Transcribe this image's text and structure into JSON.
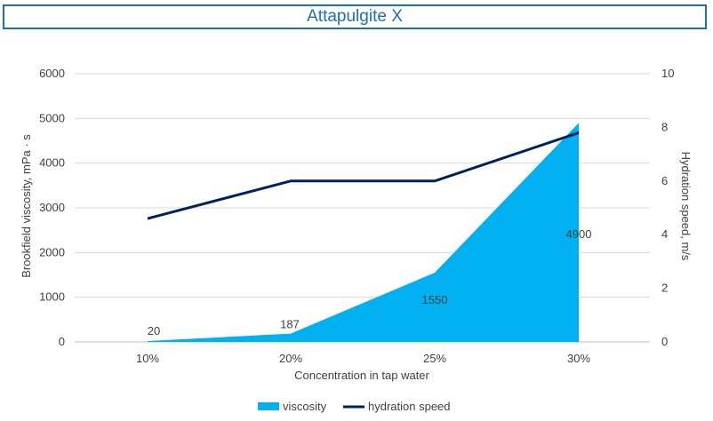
{
  "chart_data": {
    "type": "area+line",
    "title": "Attapulgite  X",
    "xlabel": "Concentration in tap water",
    "ylabel_left": "Brookfield viscosity, mPa · s",
    "ylabel_right": "Hydration  speed, m/s",
    "categories": [
      "10%",
      "20%",
      "25%",
      "30%"
    ],
    "ylim_left": [
      0,
      6000
    ],
    "yticks_left": [
      "0",
      "1000",
      "2000",
      "3000",
      "4000",
      "5000",
      "6000"
    ],
    "ylim_right": [
      0,
      10
    ],
    "yticks_right": [
      "0",
      "2",
      "4",
      "6",
      "8",
      "10"
    ],
    "grid": true,
    "legend_position": "bottom",
    "series": [
      {
        "name": "viscosity",
        "kind": "area",
        "axis": "left",
        "color": "#00b0f0",
        "values": [
          20,
          187,
          1550,
          4900
        ],
        "labels": [
          "20",
          "187",
          "1550",
          "4900"
        ]
      },
      {
        "name": "hydration speed",
        "kind": "line",
        "axis": "right",
        "color": "#002060",
        "values": [
          4.6,
          6.0,
          6.0,
          7.8
        ]
      }
    ]
  }
}
